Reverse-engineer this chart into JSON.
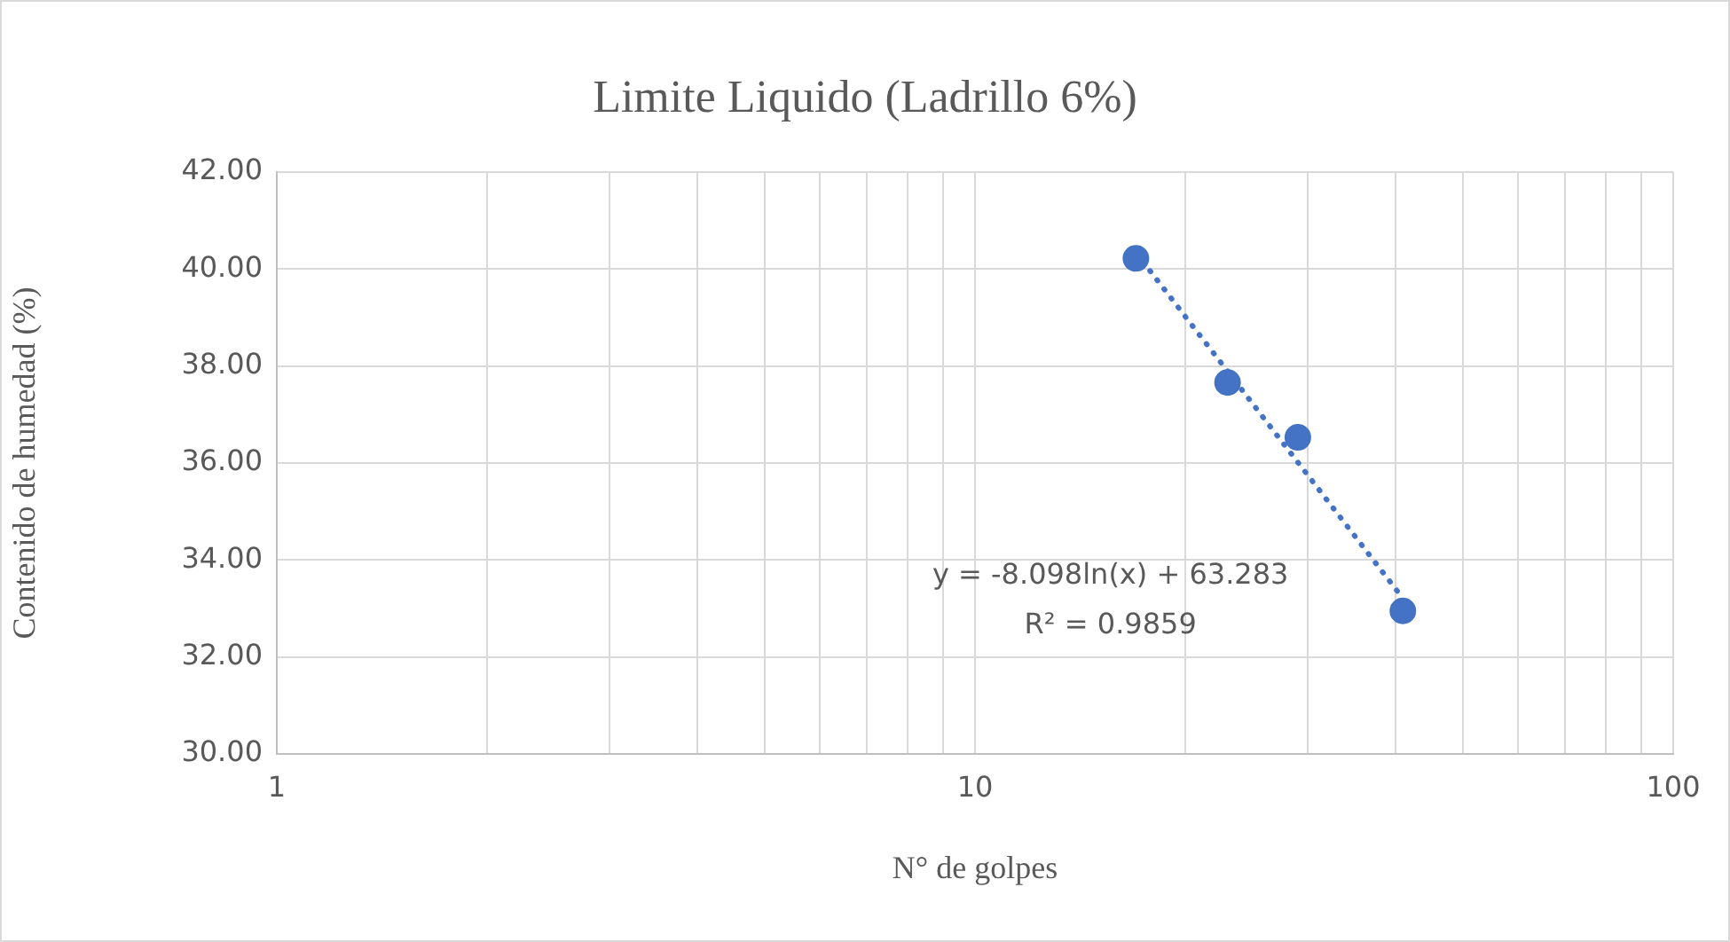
{
  "chart_data": {
    "type": "scatter",
    "title": "Limite Liquido (Ladrillo 6%)",
    "xlabel": "N° de golpes",
    "ylabel": "Contenido de humedad (%)",
    "series": [
      {
        "type": "scatter",
        "x": [
          17,
          23,
          29,
          41
        ],
        "values": [
          40.22,
          37.66,
          36.53,
          32.95
        ],
        "color": "#4472c4",
        "marker": "circle"
      },
      {
        "type": "line",
        "x": [
          17,
          41
        ],
        "values": [
          40.34,
          33.21
        ],
        "color": "#4472c4",
        "line_style": "dotted",
        "marker": "none"
      }
    ],
    "log": "x",
    "xlim": [
      1,
      100
    ],
    "xticks": [
      1,
      {
        "value": 2,
        "label": null
      },
      {
        "value": 3,
        "label": null
      },
      {
        "value": 4,
        "label": null
      },
      {
        "value": 5,
        "label": null
      },
      {
        "value": 6,
        "label": null
      },
      {
        "value": 7,
        "label": null
      },
      {
        "value": 8,
        "label": null
      },
      {
        "value": 9,
        "label": null
      },
      10,
      {
        "value": 20,
        "label": null
      },
      {
        "value": 30,
        "label": null
      },
      {
        "value": 40,
        "label": null
      },
      {
        "value": 50,
        "label": null
      },
      {
        "value": 60,
        "label": null
      },
      {
        "value": 70,
        "label": null
      },
      {
        "value": 80,
        "label": null
      },
      {
        "value": 90,
        "label": null
      },
      100
    ],
    "ylim": [
      30,
      42
    ],
    "yticks": [
      {
        "value": 30,
        "label": "30.00"
      },
      {
        "value": 32,
        "label": "32.00"
      },
      {
        "value": 34,
        "label": "34.00"
      },
      {
        "value": 36,
        "label": "36.00"
      },
      {
        "value": 38,
        "label": "38.00"
      },
      {
        "value": 40,
        "label": "40.00"
      },
      {
        "value": 42,
        "label": "42.00"
      }
    ],
    "grid": true,
    "annotations": [
      "y = -8.098ln(x) + 63.283",
      "R² = 0.9859"
    ]
  }
}
